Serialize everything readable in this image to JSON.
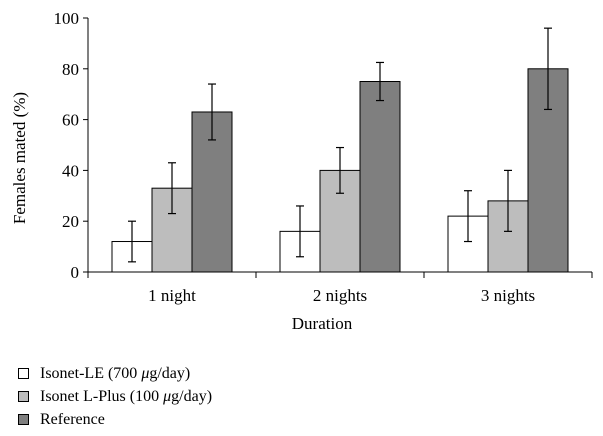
{
  "chart_data": {
    "type": "bar",
    "categories": [
      "1 night",
      "2 nights",
      "3 nights"
    ],
    "series": [
      {
        "name_parts": [
          "Isonet-LE (700 ",
          "μ",
          "g/day)"
        ],
        "color": "#ffffff",
        "values": [
          12,
          16,
          22
        ],
        "errors": [
          8,
          10,
          10
        ]
      },
      {
        "name_parts": [
          "Isonet L-Plus (100 ",
          "μ",
          "g/day)"
        ],
        "color": "#bdbdbd",
        "values": [
          33,
          40,
          28
        ],
        "errors": [
          10,
          9,
          12
        ]
      },
      {
        "name": "Reference",
        "color": "#7f7f7f",
        "values": [
          63,
          75,
          80
        ],
        "errors": [
          11,
          7.5,
          16
        ]
      }
    ],
    "xlabel": "Duration",
    "ylabel": "Females mated (%)",
    "ylim": [
      0,
      100
    ],
    "yticks": [
      0,
      20,
      40,
      60,
      80,
      100
    ],
    "grid": false,
    "legend_position": "bottom-left"
  }
}
